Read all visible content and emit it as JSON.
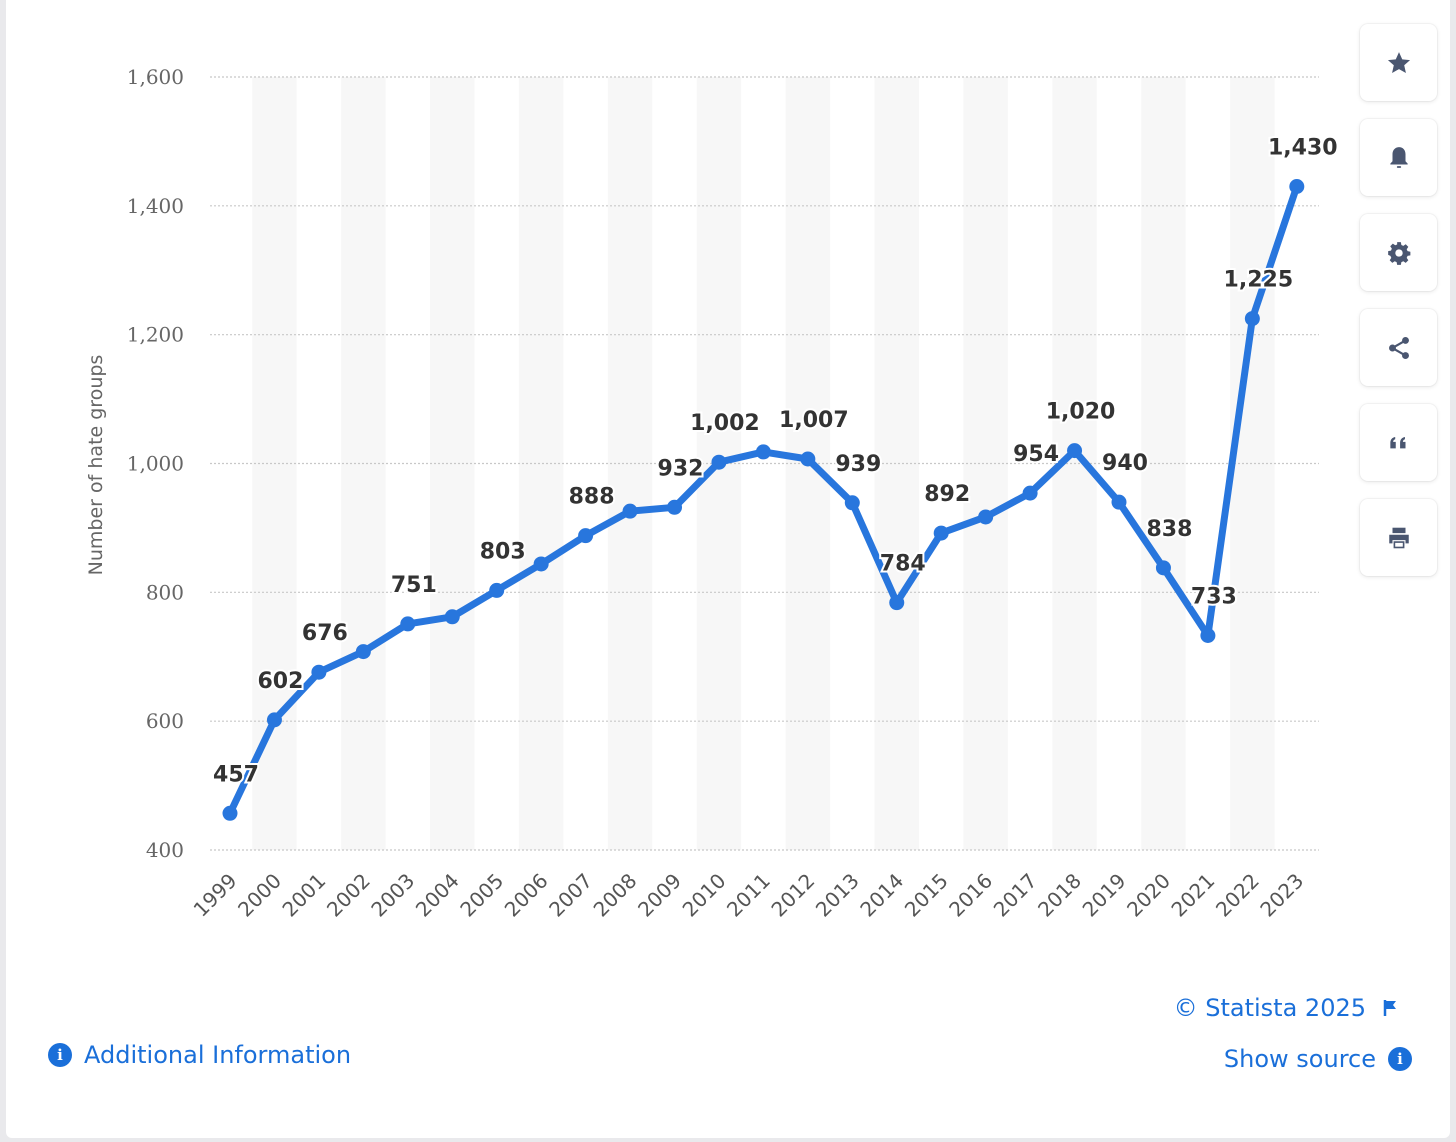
{
  "chart_data": {
    "type": "line",
    "title": "",
    "xlabel": "",
    "ylabel": "Number of hate groups",
    "ylim": [
      400,
      1600
    ],
    "yticks": [
      400,
      600,
      800,
      1000,
      1200,
      1400,
      1600
    ],
    "ytick_labels": [
      "400",
      "600",
      "800",
      "1,000",
      "1,200",
      "1,400",
      "1,600"
    ],
    "grid": true,
    "legend": "none",
    "x": [
      "1999",
      "2000",
      "2001",
      "2002",
      "2003",
      "2004",
      "2005",
      "2006",
      "2007",
      "2008",
      "2009",
      "2010",
      "2011",
      "2012",
      "2013",
      "2014",
      "2015",
      "2016",
      "2017",
      "2018",
      "2019",
      "2020",
      "2021",
      "2022",
      "2023"
    ],
    "series": [
      {
        "values": [
          457,
          602,
          676,
          708,
          751,
          762,
          803,
          844,
          888,
          926,
          932,
          1002,
          1018,
          1007,
          939,
          784,
          892,
          917,
          954,
          1020,
          940,
          838,
          733,
          1225,
          1430
        ],
        "labels": [
          "457",
          "602",
          "676",
          "",
          "751",
          "",
          "803",
          "",
          "888",
          "",
          "932",
          "1,002",
          "",
          "1,007",
          "939",
          "784",
          "892",
          "",
          "954",
          "1,020",
          "940",
          "838",
          "733",
          "1,225",
          "1,430"
        ]
      }
    ],
    "line_color": "#2876dd"
  },
  "toolbar": {
    "icons": [
      "star-icon",
      "bell-icon",
      "gear-icon",
      "share-icon",
      "quote-icon",
      "print-icon"
    ]
  },
  "footer": {
    "additional_info": "Additional Information",
    "copyright": "© Statista 2025",
    "show_source": "Show source"
  }
}
